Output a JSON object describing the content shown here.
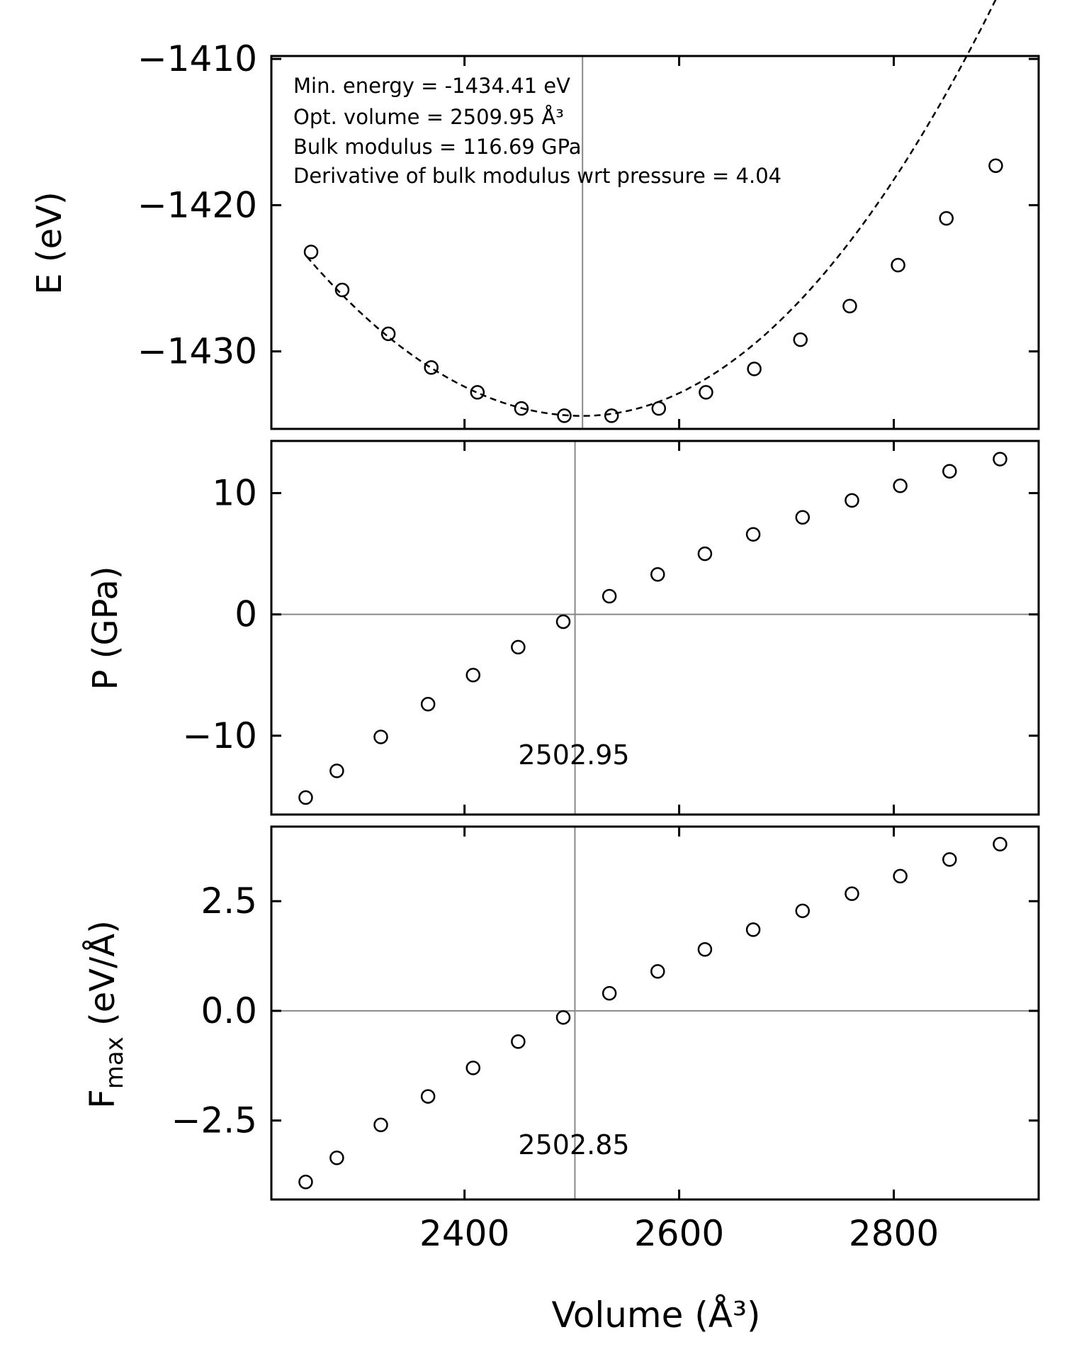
{
  "chart_data": [
    {
      "type": "scatter",
      "panel": "energy",
      "ylabel": "E (eV)",
      "xlim": [
        2220,
        2935
      ],
      "ylim": [
        -1435.3,
        -1409.8
      ],
      "yticks": [
        -1410,
        -1420,
        -1430
      ],
      "ytick_labels": [
        "−1410",
        "−1420",
        "−1430"
      ],
      "vline_x": 2509.95,
      "annotations": [
        "Min. energy = -1434.41 eV",
        "Opt. volume = 2509.95 Å³",
        "Bulk modulus = 116.69 GPa",
        "Derivative of bulk modulus wrt pressure = 4.04"
      ],
      "fit": {
        "style": "dashed",
        "x_range": [
          2253,
          2897
        ],
        "center": 2509.95,
        "min": -1434.41,
        "curv_left": 0.000165,
        "curv_right": 0.000192
      },
      "x": [
        2257,
        2286,
        2329,
        2369,
        2412,
        2453,
        2493,
        2537,
        2581,
        2625,
        2670,
        2713,
        2759,
        2804,
        2849,
        2895
      ],
      "y": [
        -1423.2,
        -1425.8,
        -1428.8,
        -1431.1,
        -1432.8,
        -1433.9,
        -1434.4,
        -1434.4,
        -1433.9,
        -1432.8,
        -1431.2,
        -1429.2,
        -1426.9,
        -1424.1,
        -1420.9,
        -1417.3
      ]
    },
    {
      "type": "scatter",
      "panel": "pressure",
      "ylabel": "P (GPa)",
      "xlim": [
        2220,
        2935
      ],
      "ylim": [
        -16.5,
        14.3
      ],
      "yticks": [
        10,
        0,
        -10
      ],
      "ytick_labels": [
        "10",
        "0",
        "−10"
      ],
      "hline_y": 0,
      "vline_x": 2502.95,
      "vline_label": "2502.95",
      "x": [
        2252,
        2281,
        2322,
        2366,
        2408,
        2450,
        2492,
        2535,
        2580,
        2624,
        2669,
        2715,
        2761,
        2806,
        2852,
        2899
      ],
      "y": [
        -15.1,
        -12.9,
        -10.1,
        -7.4,
        -5.0,
        -2.7,
        -0.6,
        1.5,
        3.3,
        5.0,
        6.6,
        8.0,
        9.4,
        10.6,
        11.8,
        12.8
      ]
    },
    {
      "type": "scatter",
      "panel": "force",
      "ylabel": "F",
      "ylabel_sub": "max",
      "ylabel_suffix": " (eV/Å)",
      "xlabel": "Volume (Å³)",
      "xlim": [
        2220,
        2935
      ],
      "ylim": [
        -4.3,
        4.2
      ],
      "xticks": [
        2400,
        2600,
        2800
      ],
      "xtick_labels": [
        "2400",
        "2600",
        "2800"
      ],
      "yticks": [
        2.5,
        0.0,
        -2.5
      ],
      "ytick_labels": [
        "2.5",
        "0.0",
        "−2.5"
      ],
      "hline_y": 0,
      "vline_x": 2502.85,
      "vline_label": "2502.85",
      "x": [
        2252,
        2281,
        2322,
        2366,
        2408,
        2450,
        2492,
        2535,
        2580,
        2624,
        2669,
        2715,
        2761,
        2806,
        2852,
        2899
      ],
      "y": [
        -3.9,
        -3.35,
        -2.6,
        -1.95,
        -1.3,
        -0.7,
        -0.15,
        0.4,
        0.9,
        1.4,
        1.85,
        2.28,
        2.67,
        3.07,
        3.45,
        3.8
      ]
    }
  ]
}
